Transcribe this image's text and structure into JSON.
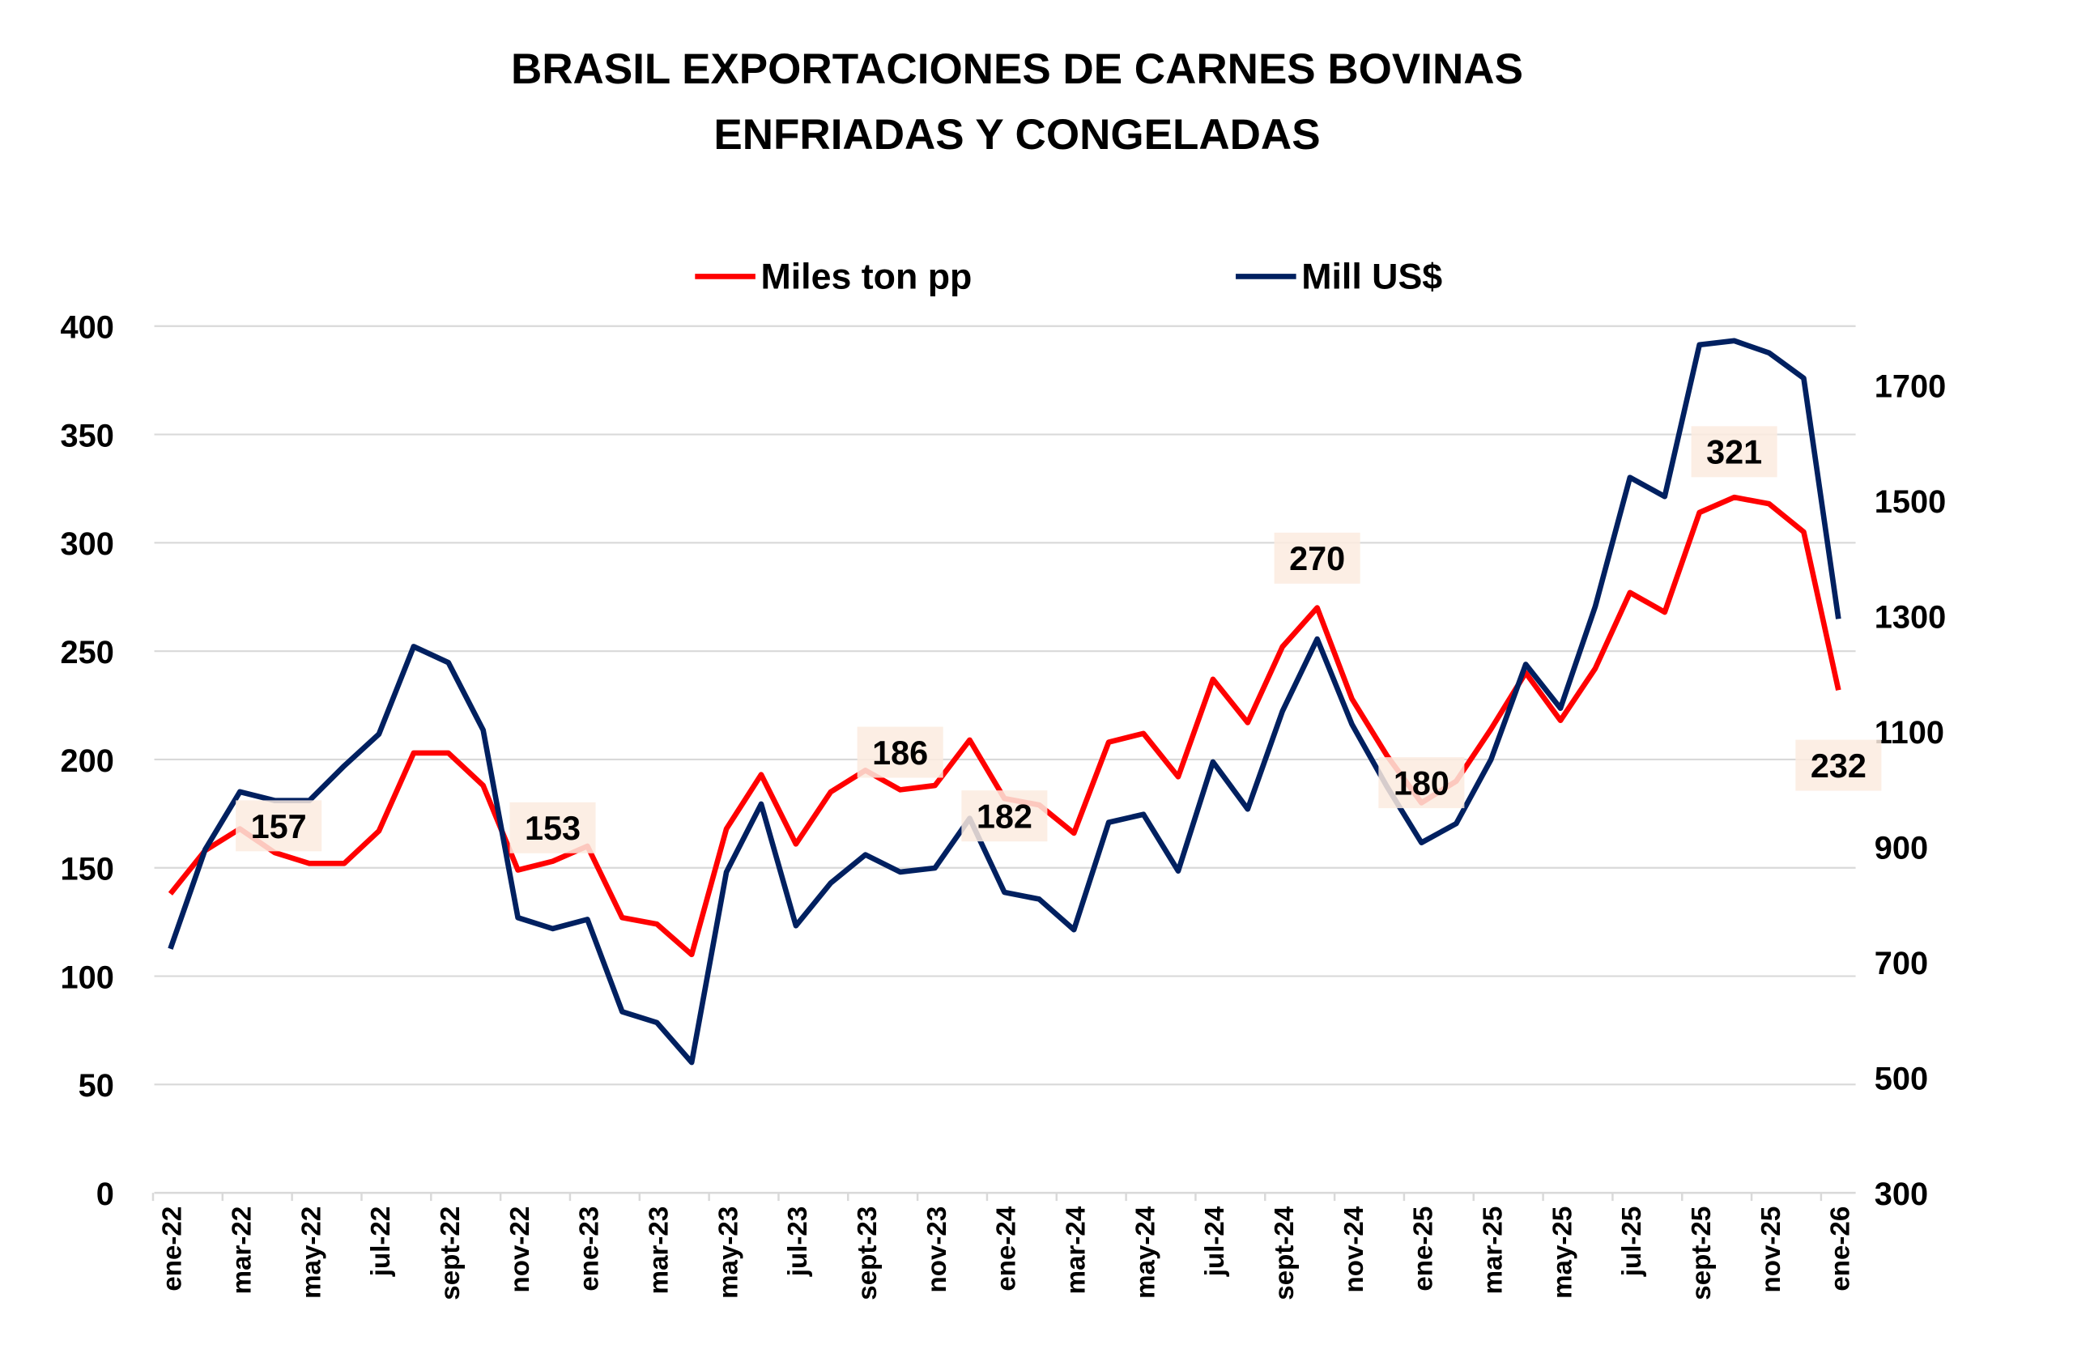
{
  "chart_data": {
    "type": "line",
    "title": [
      "BRASIL EXPORTACIONES DE CARNES BOVINAS",
      "ENFRIADAS Y CONGELADAS"
    ],
    "x": [
      "ene-22",
      "feb-22",
      "mar-22",
      "abr-22",
      "may-22",
      "jun-22",
      "jul-22",
      "ago-22",
      "sept-22",
      "oct-22",
      "nov-22",
      "dic-22",
      "ene-23",
      "feb-23",
      "mar-23",
      "abr-23",
      "may-23",
      "jun-23",
      "jul-23",
      "ago-23",
      "sept-23",
      "oct-23",
      "nov-23",
      "dic-23",
      "ene-24",
      "feb-24",
      "mar-24",
      "abr-24",
      "may-24",
      "jun-24",
      "jul-24",
      "ago-24",
      "sept-24",
      "oct-24",
      "nov-24",
      "dic-24",
      "ene-25",
      "feb-25",
      "mar-25",
      "abr-25",
      "may-25",
      "jun-25",
      "jul-25",
      "ago-25",
      "sept-25",
      "oct-25",
      "nov-25",
      "dic-25",
      "ene-26"
    ],
    "x_tick_labels": [
      "ene-22",
      "mar-22",
      "may-22",
      "jul-22",
      "sept-22",
      "nov-22",
      "ene-23",
      "mar-23",
      "may-23",
      "jul-23",
      "sept-23",
      "nov-23",
      "ene-24",
      "mar-24",
      "may-24",
      "jul-24",
      "sept-24",
      "nov-24",
      "ene-25",
      "mar-25",
      "may-25",
      "jul-25",
      "sept-25",
      "nov-25",
      "ene-26"
    ],
    "series": [
      {
        "name": "Miles ton pp",
        "axis": "left",
        "color": "#ff0000",
        "values": [
          138,
          158,
          168,
          157,
          152,
          152,
          167,
          203,
          203,
          188,
          149,
          153,
          160,
          127,
          124,
          110,
          168,
          193,
          161,
          185,
          195,
          186,
          188,
          209,
          182,
          179,
          166,
          208,
          212,
          192,
          237,
          217,
          252,
          270,
          228,
          202,
          180,
          190,
          214,
          240,
          218,
          242,
          277,
          268,
          314,
          321,
          318,
          305,
          232
        ]
      },
      {
        "name": "Mill US$",
        "axis": "right",
        "color": "#002060",
        "values": [
          723,
          895,
          995,
          980,
          980,
          1040,
          1095,
          1247,
          1219,
          1102,
          777,
          758,
          774,
          614,
          595,
          526,
          856,
          974,
          763,
          837,
          886,
          856,
          863,
          949,
          821,
          809,
          756,
          942,
          956,
          858,
          1047,
          965,
          1135,
          1260,
          1112,
          1005,
          907,
          940,
          1051,
          1216,
          1140,
          1316,
          1540,
          1507,
          1770,
          1777,
          1756,
          1712,
          1295
        ]
      }
    ],
    "data_labels": [
      {
        "index": 3,
        "text": "157"
      },
      {
        "index": 11,
        "text": "153"
      },
      {
        "index": 21,
        "text": "186"
      },
      {
        "index": 24,
        "text": "182"
      },
      {
        "index": 33,
        "text": "270"
      },
      {
        "index": 36,
        "text": "180"
      },
      {
        "index": 45,
        "text": "321"
      },
      {
        "index": 48,
        "text": "232"
      }
    ],
    "data_label_bg": "#fbebdf",
    "y_left": {
      "ticks": [
        "0",
        "50",
        "100",
        "150",
        "200",
        "250",
        "300",
        "350",
        "400"
      ],
      "ylim": [
        0,
        400
      ]
    },
    "y_right": {
      "ticks": [
        "300",
        "500",
        "700",
        "900",
        "1100",
        "1300",
        "1500",
        "1700"
      ],
      "ylim": [
        300,
        1800
      ]
    },
    "grid": true,
    "legend_position": "top-center"
  }
}
